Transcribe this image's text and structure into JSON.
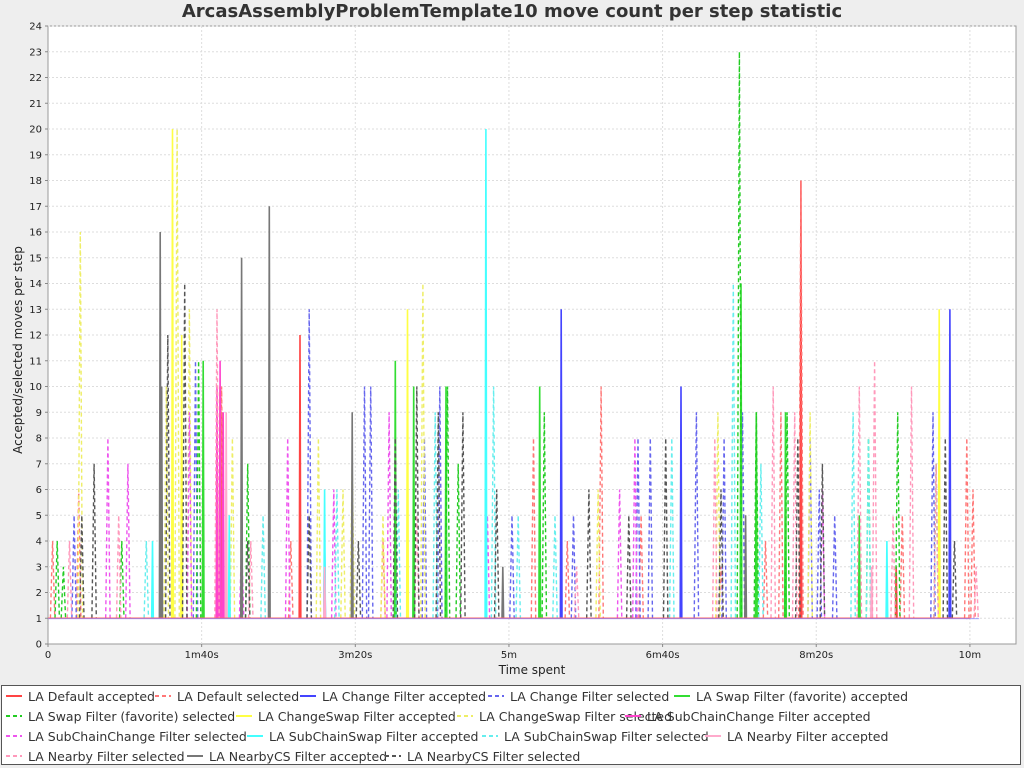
{
  "chart_data": {
    "type": "line",
    "title": "ArcasAssemblyProblemTemplate10 move count per step statistic",
    "xlabel": "Time spent",
    "ylabel": "Accepted/selected moves per step",
    "xlim_seconds": [
      0,
      630
    ],
    "ylim": [
      0,
      24
    ],
    "y_ticks": [
      "0",
      "1",
      "2",
      "3",
      "4",
      "5",
      "6",
      "7",
      "8",
      "9",
      "10",
      "11",
      "12",
      "13",
      "14",
      "15",
      "16",
      "17",
      "18",
      "19",
      "20",
      "21",
      "22",
      "23",
      "24"
    ],
    "x_ticks": [
      {
        "value": 0,
        "label": "0"
      },
      {
        "value": 100,
        "label": "1m40s"
      },
      {
        "value": 200,
        "label": "3m20s"
      },
      {
        "value": 300,
        "label": "5m"
      },
      {
        "value": 400,
        "label": "6m40s"
      },
      {
        "value": 500,
        "label": "8m20s"
      },
      {
        "value": 600,
        "label": "10m"
      }
    ],
    "grid": true,
    "legend_position": "bottom",
    "series": [
      {
        "name": "LA Default accepted",
        "color": "#ff4444",
        "dash": "solid",
        "spikes": [
          [
            112,
            10
          ],
          [
            113,
            9
          ],
          [
            164,
            12
          ],
          [
            490,
            18
          ],
          [
            552,
            3
          ]
        ]
      },
      {
        "name": "LA Default selected",
        "color": "#ff7777",
        "dash": "dashed",
        "spikes": [
          [
            3,
            4
          ],
          [
            20,
            6
          ],
          [
            113,
            10
          ],
          [
            158,
            4
          ],
          [
            218,
            4
          ],
          [
            316,
            8
          ],
          [
            338,
            4
          ],
          [
            360,
            10
          ],
          [
            386,
            5
          ],
          [
            438,
            3
          ],
          [
            467,
            4
          ],
          [
            477,
            9
          ],
          [
            490,
            18
          ],
          [
            556,
            5
          ],
          [
            598,
            8
          ],
          [
            602,
            6
          ]
        ]
      },
      {
        "name": "LA Change Filter accepted",
        "color": "#4444ff",
        "dash": "solid",
        "spikes": [
          [
            180,
            4
          ],
          [
            334,
            13
          ],
          [
            412,
            10
          ],
          [
            587,
            13
          ],
          [
            598,
            1
          ]
        ]
      },
      {
        "name": "LA Change Filter selected",
        "color": "#6666ee",
        "dash": "dashed",
        "spikes": [
          [
            17,
            5
          ],
          [
            96,
            11
          ],
          [
            170,
            13
          ],
          [
            206,
            10
          ],
          [
            210,
            10
          ],
          [
            245,
            8
          ],
          [
            255,
            10
          ],
          [
            302,
            5
          ],
          [
            342,
            5
          ],
          [
            384,
            8
          ],
          [
            392,
            8
          ],
          [
            422,
            9
          ],
          [
            440,
            8
          ],
          [
            452,
            9
          ],
          [
            496,
            8
          ],
          [
            502,
            6
          ],
          [
            512,
            5
          ],
          [
            576,
            9
          ]
        ]
      },
      {
        "name": "LA Swap Filter (favorite) accepted",
        "color": "#33dd33",
        "dash": "solid",
        "spikes": [
          [
            101,
            11
          ],
          [
            226,
            11
          ],
          [
            238,
            10
          ],
          [
            259,
            10
          ],
          [
            320,
            10
          ],
          [
            451,
            14
          ],
          [
            461,
            9
          ],
          [
            480,
            9
          ],
          [
            528,
            5
          ]
        ]
      },
      {
        "name": "LA Swap Filter (favorite) selected",
        "color": "#22cc22",
        "dash": "dashed",
        "spikes": [
          [
            6,
            4
          ],
          [
            10,
            3
          ],
          [
            48,
            4
          ],
          [
            98,
            11
          ],
          [
            130,
            7
          ],
          [
            260,
            10
          ],
          [
            267,
            7
          ],
          [
            323,
            9
          ],
          [
            450,
            23
          ],
          [
            461,
            9
          ],
          [
            481,
            9
          ],
          [
            534,
            8
          ],
          [
            553,
            9
          ],
          [
            578,
            7
          ]
        ]
      },
      {
        "name": "LA ChangeSwap Filter accepted",
        "color": "#ffff44",
        "dash": "solid",
        "spikes": [
          [
            81,
            20
          ],
          [
            87,
            12
          ],
          [
            112,
            10
          ],
          [
            234,
            13
          ],
          [
            580,
            13
          ]
        ]
      },
      {
        "name": "LA ChangeSwap Filter selected",
        "color": "#eeee66",
        "dash": "dashed",
        "spikes": [
          [
            21,
            16
          ],
          [
            77,
            10
          ],
          [
            84,
            20
          ],
          [
            92,
            13
          ],
          [
            120,
            8
          ],
          [
            176,
            8
          ],
          [
            192,
            6
          ],
          [
            198,
            7
          ],
          [
            218,
            5
          ],
          [
            244,
            14
          ],
          [
            358,
            6
          ],
          [
            436,
            9
          ],
          [
            496,
            9
          ]
        ]
      },
      {
        "name": "LA SubChainChange Filter accepted",
        "color": "#ff44cc",
        "dash": "solid",
        "spikes": [
          [
            110,
            10
          ],
          [
            112,
            11
          ],
          [
            114,
            9
          ]
        ]
      },
      {
        "name": "LA SubChainChange Filter selected",
        "color": "#ee55ee",
        "dash": "dashed",
        "spikes": [
          [
            39,
            8
          ],
          [
            52,
            7
          ],
          [
            92,
            9
          ],
          [
            126,
            4
          ],
          [
            156,
            8
          ],
          [
            186,
            6
          ],
          [
            222,
            9
          ],
          [
            286,
            5
          ],
          [
            372,
            6
          ],
          [
            382,
            8
          ],
          [
            504,
            6
          ]
        ]
      },
      {
        "name": "LA SubChainSwap Filter accepted",
        "color": "#44ffff",
        "dash": "solid",
        "spikes": [
          [
            68,
            4
          ],
          [
            118,
            5
          ],
          [
            180,
            6
          ],
          [
            285,
            20
          ],
          [
            546,
            4
          ]
        ]
      },
      {
        "name": "LA SubChainSwap Filter selected",
        "color": "#66eeee",
        "dash": "dashed",
        "spikes": [
          [
            64,
            4
          ],
          [
            140,
            5
          ],
          [
            188,
            6
          ],
          [
            228,
            6
          ],
          [
            252,
            9
          ],
          [
            290,
            10
          ],
          [
            306,
            5
          ],
          [
            330,
            5
          ],
          [
            406,
            8
          ],
          [
            446,
            14
          ],
          [
            464,
            7
          ],
          [
            524,
            9
          ],
          [
            534,
            8
          ]
        ]
      },
      {
        "name": "LA Nearby Filter accepted",
        "color": "#ffaacc",
        "dash": "solid",
        "spikes": [
          [
            116,
            9
          ],
          [
            180,
            3
          ],
          [
            536,
            3
          ]
        ]
      },
      {
        "name": "LA Nearby Filter selected",
        "color": "#ff99bb",
        "dash": "dashed",
        "spikes": [
          [
            14,
            4
          ],
          [
            46,
            5
          ],
          [
            110,
            13
          ],
          [
            132,
            4
          ],
          [
            240,
            5
          ],
          [
            344,
            3
          ],
          [
            434,
            8
          ],
          [
            472,
            10
          ],
          [
            486,
            9
          ],
          [
            528,
            10
          ],
          [
            538,
            11
          ],
          [
            550,
            5
          ],
          [
            562,
            10
          ],
          [
            578,
            7
          ],
          [
            604,
            3
          ]
        ]
      },
      {
        "name": "LA NearbyCS Filter accepted",
        "color": "#777777",
        "dash": "solid",
        "spikes": [
          [
            73,
            16
          ],
          [
            74,
            10
          ],
          [
            126,
            15
          ],
          [
            144,
            17
          ],
          [
            198,
            9
          ],
          [
            296,
            3
          ],
          [
            454,
            5
          ]
        ]
      },
      {
        "name": "LA NearbyCS Filter selected",
        "color": "#555555",
        "dash": "dashed",
        "spikes": [
          [
            22,
            5
          ],
          [
            30,
            7
          ],
          [
            78,
            12
          ],
          [
            89,
            14
          ],
          [
            130,
            4
          ],
          [
            170,
            5
          ],
          [
            202,
            4
          ],
          [
            226,
            8
          ],
          [
            240,
            10
          ],
          [
            254,
            9
          ],
          [
            270,
            9
          ],
          [
            292,
            6
          ],
          [
            352,
            6
          ],
          [
            378,
            5
          ],
          [
            402,
            8
          ],
          [
            438,
            6
          ],
          [
            488,
            8
          ],
          [
            504,
            7
          ],
          [
            584,
            8
          ],
          [
            590,
            4
          ]
        ]
      }
    ]
  },
  "legend": [
    {
      "label": "LA Default accepted",
      "color": "#ff4444",
      "dash": "solid"
    },
    {
      "label": "LA Default selected",
      "color": "#ff7777",
      "dash": "dashed"
    },
    {
      "label": "LA Change Filter accepted",
      "color": "#4444ff",
      "dash": "solid"
    },
    {
      "label": "LA Change Filter selected",
      "color": "#6666ee",
      "dash": "dashed"
    },
    {
      "label": "LA Swap Filter (favorite) accepted",
      "color": "#33dd33",
      "dash": "solid"
    },
    {
      "label": "LA Swap Filter (favorite) selected",
      "color": "#22cc22",
      "dash": "dashed"
    },
    {
      "label": "LA ChangeSwap Filter accepted",
      "color": "#ffff44",
      "dash": "solid"
    },
    {
      "label": "LA ChangeSwap Filter selected",
      "color": "#eeee66",
      "dash": "dashed"
    },
    {
      "label": "LA SubChainChange Filter accepted",
      "color": "#ff44cc",
      "dash": "solid"
    },
    {
      "label": "LA SubChainChange Filter selected",
      "color": "#ee55ee",
      "dash": "dashed"
    },
    {
      "label": "LA SubChainSwap Filter accepted",
      "color": "#44ffff",
      "dash": "solid"
    },
    {
      "label": "LA SubChainSwap Filter selected",
      "color": "#66eeee",
      "dash": "dashed"
    },
    {
      "label": "LA Nearby Filter accepted",
      "color": "#ffaacc",
      "dash": "solid"
    },
    {
      "label": "LA Nearby Filter selected",
      "color": "#ff99bb",
      "dash": "dashed"
    },
    {
      "label": "LA NearbyCS Filter accepted",
      "color": "#777777",
      "dash": "solid"
    },
    {
      "label": "LA NearbyCS Filter selected",
      "color": "#555555",
      "dash": "dashed"
    }
  ]
}
